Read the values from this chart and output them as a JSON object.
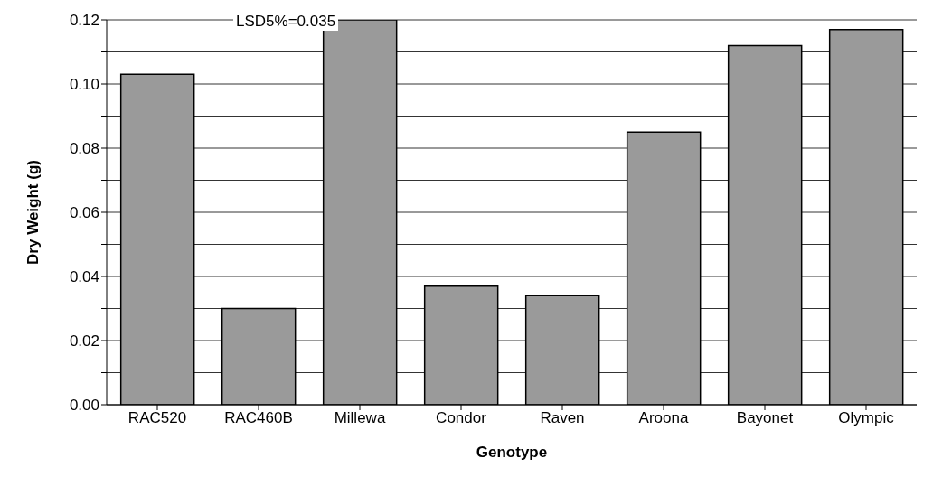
{
  "chart_data": {
    "type": "bar",
    "xlabel": "Genotype",
    "ylabel": "Dry Weight (g)",
    "categories": [
      "RAC520",
      "RAC460B",
      "Millewa",
      "Condor",
      "Raven",
      "Aroona",
      "Bayonet",
      "Olympic"
    ],
    "values": [
      0.103,
      0.03,
      0.12,
      0.037,
      0.034,
      0.085,
      0.112,
      0.117
    ],
    "color": "#9a9a9a",
    "ylim": [
      0,
      0.12
    ],
    "yticks": [
      {
        "value": 0,
        "label": "0.00"
      },
      {
        "value": 0.01,
        "label": null
      },
      {
        "value": 0.02,
        "label": "0.02"
      },
      {
        "value": 0.03,
        "label": null
      },
      {
        "value": 0.04,
        "label": "0.04"
      },
      {
        "value": 0.05,
        "label": null
      },
      {
        "value": 0.06,
        "label": "0.06"
      },
      {
        "value": 0.07,
        "label": null
      },
      {
        "value": 0.08,
        "label": "0.08"
      },
      {
        "value": 0.09,
        "label": null
      },
      {
        "value": 0.1,
        "label": "0.10"
      },
      {
        "value": 0.11,
        "label": null
      },
      {
        "value": 0.12,
        "label": "0.12"
      }
    ],
    "grid": "y",
    "annotations": [
      "LSD5%=0.035"
    ]
  }
}
